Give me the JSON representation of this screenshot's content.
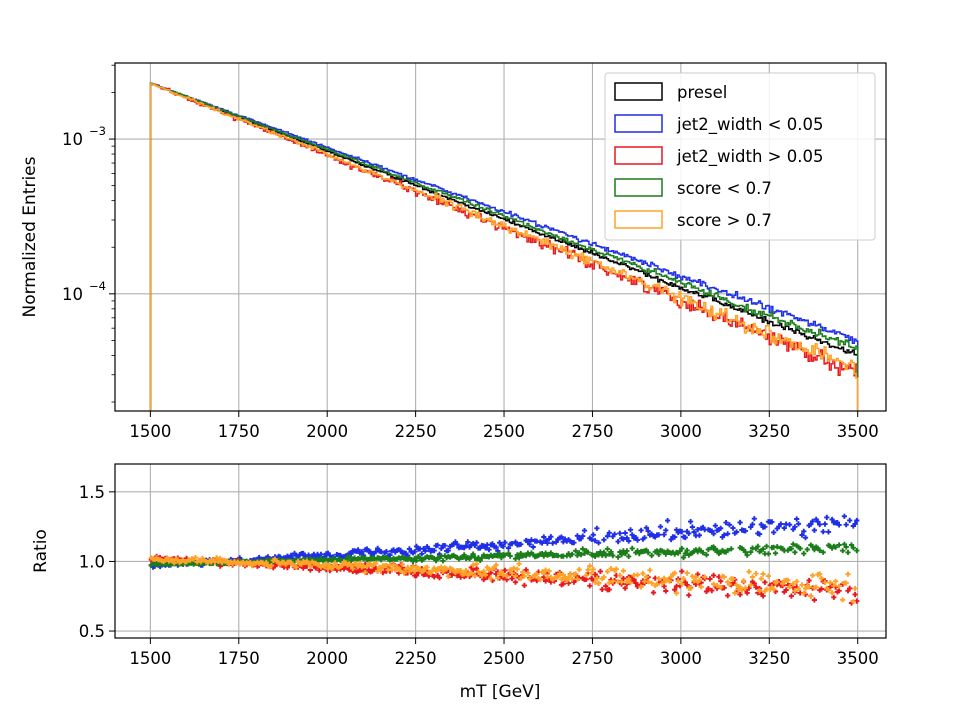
{
  "chart_data": [
    {
      "type": "histogram-step",
      "ylabel": "Normalized Entries",
      "yscale": "log",
      "xlim": [
        1400,
        3580
      ],
      "ylim": [
        1.75e-05,
        0.0031
      ],
      "grid": true,
      "x_ticks": [
        1500,
        1750,
        2000,
        2250,
        2500,
        2750,
        3000,
        3250,
        3500
      ],
      "y_ticks": [
        {
          "value": 0.001,
          "base": "10",
          "exp": "−3"
        },
        {
          "value": 0.0001,
          "base": "10",
          "exp": "−4"
        }
      ],
      "x_range": [
        1500,
        3500
      ],
      "bin_width": 5,
      "legend_position": "upper right",
      "series": [
        {
          "name": "presel",
          "color": "#000000",
          "start": 0.0023,
          "end": 4e-05,
          "offset": 1.0,
          "noise": 0.05
        },
        {
          "name": "jet2_width < 0.05",
          "color": "#1f2fe8",
          "start": 0.0023,
          "end": 4.8e-05,
          "offset": 1.04,
          "noise": 0.06
        },
        {
          "name": "jet2_width > 0.05",
          "color": "#e8191e",
          "start": 0.0023,
          "end": 3.2e-05,
          "offset": 0.97,
          "noise": 0.13
        },
        {
          "name": "score < 0.7",
          "color": "#1a7d1a",
          "start": 0.0023,
          "end": 4.3e-05,
          "offset": 1.02,
          "noise": 0.06
        },
        {
          "name": "score > 0.7",
          "color": "#ffa229",
          "start": 0.0023,
          "end": 3.4e-05,
          "offset": 0.96,
          "noise": 0.12
        }
      ]
    },
    {
      "type": "scatter",
      "xlabel": "mT [GeV]",
      "ylabel": "Ratio",
      "xlim": [
        1400,
        3580
      ],
      "ylim": [
        0.45,
        1.7
      ],
      "grid": true,
      "x_ticks": [
        1500,
        1750,
        2000,
        2250,
        2500,
        2750,
        3000,
        3250,
        3500
      ],
      "y_ticks": [
        "0.5",
        "1.0",
        "1.5"
      ],
      "series": [
        {
          "name": "jet2_width < 0.05",
          "color": "#1f2fe8",
          "ratio_start": 0.97,
          "ratio_end": 1.28,
          "spread": 0.1
        },
        {
          "name": "jet2_width > 0.05",
          "color": "#e8191e",
          "ratio_start": 1.02,
          "ratio_end": 0.78,
          "spread": 0.12
        },
        {
          "name": "score < 0.7",
          "color": "#1a7d1a",
          "ratio_start": 0.98,
          "ratio_end": 1.1,
          "spread": 0.05
        },
        {
          "name": "score > 0.7",
          "color": "#ffa229",
          "ratio_start": 1.02,
          "ratio_end": 0.82,
          "spread": 0.12
        }
      ]
    }
  ]
}
